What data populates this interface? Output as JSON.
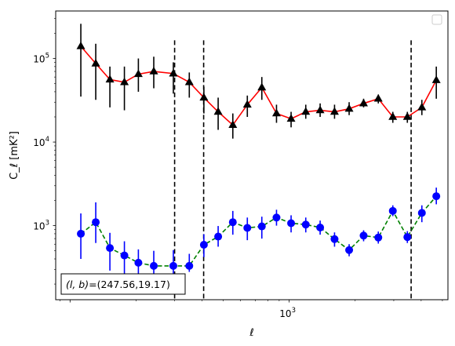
{
  "chart_data": {
    "type": "scatter",
    "title": "",
    "xlabel": "ℓ",
    "ylabel": "C_ℓ  [mK²]",
    "xscale": "log",
    "yscale": "log",
    "xlim": [
      86,
      5300
    ],
    "ylim": [
      130,
      370000
    ],
    "x_tick_labels": [
      {
        "value": 1000,
        "base": "10",
        "exp": "3"
      }
    ],
    "y_tick_labels": [
      {
        "value": 1000,
        "base": "10",
        "exp": "3"
      },
      {
        "value": 10000,
        "base": "10",
        "exp": "4"
      },
      {
        "value": 100000,
        "base": "10",
        "exp": "5"
      }
    ],
    "grid": false,
    "legend": {
      "placement": "top-right",
      "entries": []
    },
    "vlines": [
      300,
      407,
      3600
    ],
    "annotation": {
      "lb_label": "(l, b)",
      "lb_value": "=(247.56,19.17)"
    },
    "series": [
      {
        "color": "#ff0000",
        "linestyle": "solid",
        "marker": "triangle",
        "marker_color": "#000000",
        "x": [
          112,
          131,
          152,
          177,
          205,
          241,
          296,
          350,
          408,
          474,
          553,
          644,
          750,
          875,
          1020,
          1190,
          1384,
          1610,
          1877,
          2185,
          2550,
          2970,
          3460,
          4030,
          4690
        ],
        "y": [
          140000,
          87000,
          56000,
          52000,
          65000,
          70000,
          66000,
          52000,
          34000,
          23000,
          16000,
          28000,
          45000,
          22000,
          19000,
          23000,
          24000,
          23000,
          25000,
          29000,
          33000,
          20000,
          20000,
          26000,
          55000
        ],
        "err_low": [
          35000,
          32000,
          26000,
          24000,
          40000,
          44000,
          38000,
          34000,
          22000,
          14000,
          11000,
          20000,
          32000,
          17000,
          15000,
          19000,
          20000,
          19000,
          21000,
          26000,
          29000,
          17000,
          17000,
          21000,
          33000
        ],
        "err_high": [
          260000,
          150000,
          80000,
          80000,
          100000,
          105000,
          90000,
          68000,
          46000,
          34000,
          22000,
          36000,
          60000,
          28000,
          23000,
          28000,
          29000,
          28000,
          30000,
          33000,
          37000,
          23000,
          23000,
          32000,
          80000
        ]
      },
      {
        "color": "#008000",
        "linestyle": "dashed",
        "marker": "circle",
        "marker_color": "#0000ff",
        "x": [
          112,
          131,
          152,
          177,
          205,
          241,
          296,
          350,
          408,
          474,
          553,
          644,
          750,
          875,
          1020,
          1190,
          1384,
          1610,
          1877,
          2185,
          2550,
          2970,
          3460,
          4030,
          4690
        ],
        "y": [
          800,
          1100,
          540,
          440,
          360,
          330,
          330,
          330,
          590,
          740,
          1100,
          940,
          980,
          1250,
          1070,
          1030,
          950,
          690,
          510,
          760,
          720,
          1500,
          730,
          1420,
          2250
        ],
        "err_low": [
          400,
          620,
          290,
          240,
          200,
          170,
          160,
          280,
          420,
          560,
          780,
          670,
          700,
          1000,
          830,
          830,
          780,
          560,
          430,
          650,
          610,
          1300,
          620,
          1100,
          1800
        ],
        "err_high": [
          1400,
          1900,
          820,
          650,
          520,
          500,
          510,
          460,
          790,
          990,
          1500,
          1250,
          1280,
          1550,
          1330,
          1250,
          1150,
          830,
          600,
          880,
          850,
          1750,
          860,
          1750,
          2850
        ]
      }
    ]
  }
}
